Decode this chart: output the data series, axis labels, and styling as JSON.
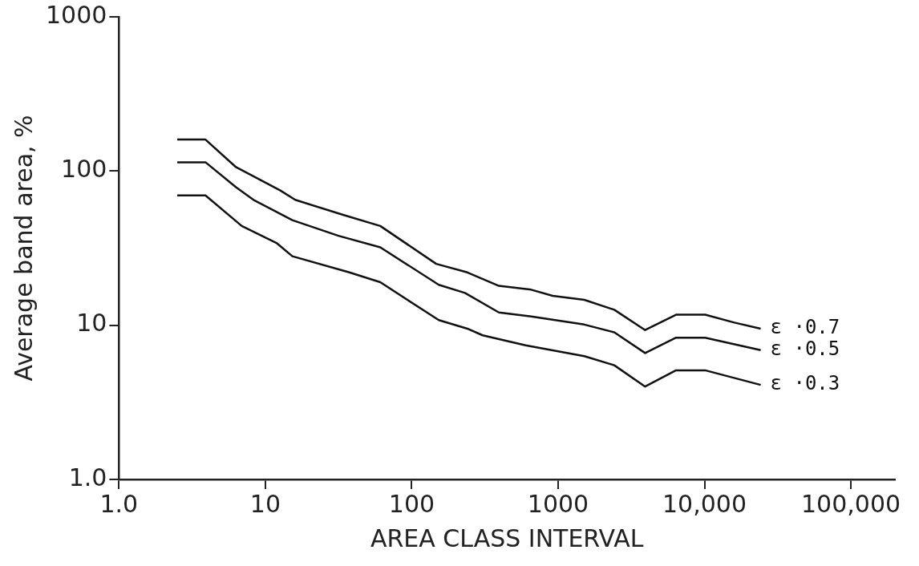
{
  "chart_data": {
    "type": "line",
    "xlabel": "AREA CLASS INTERVAL",
    "ylabel": "Average band area, %",
    "log": "xy",
    "grid": false,
    "legend": false,
    "marker": "none",
    "line_style": "solid",
    "xlim": [
      1,
      200000
    ],
    "ylim": [
      1,
      1000
    ],
    "xticks": [
      {
        "value": 1,
        "label": "1.0"
      },
      10,
      100,
      1000,
      {
        "value": 10000,
        "label": "10,000"
      },
      {
        "value": 100000,
        "label": "100,000"
      }
    ],
    "yticks": [
      {
        "value": 1,
        "label": "1.0"
      },
      10,
      100,
      1000
    ],
    "series": [
      {
        "name": "ε ·0.7",
        "color": "#111111",
        "x": [
          2.5,
          3.9,
          6.3,
          12.6,
          16,
          34,
          61,
          147,
          240,
          394,
          655,
          918,
          1510,
          2420,
          3930,
          6390,
          10100,
          16000,
          24200
        ],
        "values": [
          160,
          160,
          106,
          75,
          65,
          52,
          44,
          25,
          22,
          18,
          17,
          15.5,
          14.6,
          12.6,
          9.3,
          11.7,
          11.7,
          10.4,
          9.5
        ]
      },
      {
        "name": "ε ·0.5",
        "color": "#111111",
        "x": [
          2.5,
          3.9,
          6.3,
          8.3,
          15.3,
          31.6,
          61,
          153,
          231,
          394,
          655,
          1510,
          2420,
          3930,
          6390,
          10100,
          24200
        ],
        "values": [
          114,
          114,
          78.5,
          65,
          48,
          38,
          32,
          18.3,
          16.2,
          12.1,
          11.4,
          10.1,
          9,
          6.6,
          8.3,
          8.3,
          6.9
        ]
      },
      {
        "name": "ε ·0.3",
        "color": "#111111",
        "x": [
          2.5,
          3.9,
          6.9,
          12,
          15.3,
          37.5,
          61,
          153,
          240,
          305,
          600,
          1510,
          2420,
          3930,
          6390,
          10100,
          24200
        ],
        "values": [
          69.5,
          69.5,
          44,
          34,
          28,
          22,
          19,
          10.8,
          9.5,
          8.6,
          7.4,
          6.3,
          5.5,
          4,
          5.1,
          5.1,
          4.1
        ]
      }
    ]
  }
}
